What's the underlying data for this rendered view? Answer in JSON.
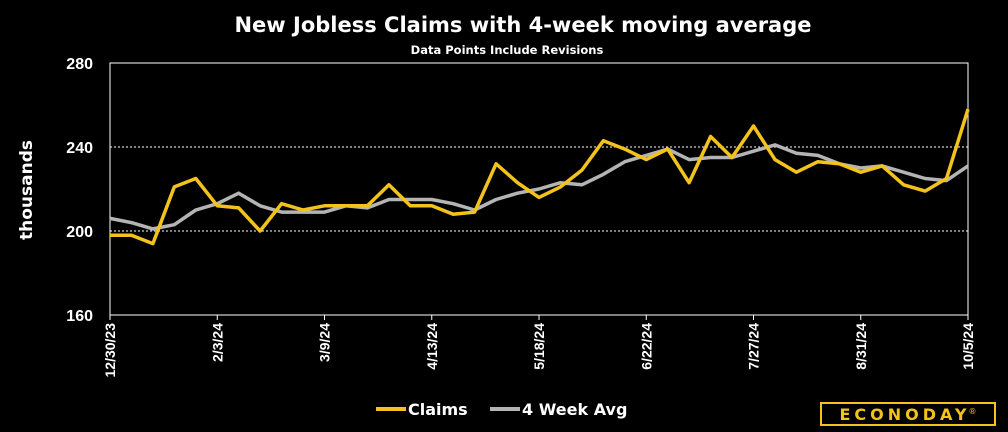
{
  "chart_data": {
    "type": "line",
    "title": "New Jobless Claims with 4-week moving average",
    "subtitle": "Data Points Include Revisions",
    "ylabel": "thousands",
    "xlabel": "",
    "ylim": [
      160,
      280
    ],
    "yticks": [
      160,
      200,
      240,
      280
    ],
    "gridlines_at": [
      200,
      240
    ],
    "grid": true,
    "legend_position": "bottom",
    "x_tick_labels": [
      {
        "index": 0,
        "label": "12/30/23"
      },
      {
        "index": 5,
        "label": "2/3/24"
      },
      {
        "index": 10,
        "label": "3/9/24"
      },
      {
        "index": 15,
        "label": "4/13/24"
      },
      {
        "index": 20,
        "label": "5/18/24"
      },
      {
        "index": 25,
        "label": "6/22/24"
      },
      {
        "index": 30,
        "label": "7/27/24"
      },
      {
        "index": 35,
        "label": "8/31/24"
      },
      {
        "index": 40,
        "label": "10/5/24"
      }
    ],
    "series": [
      {
        "name": "Claims",
        "color": "#f3c21b",
        "values": [
          198,
          198,
          194,
          221,
          225,
          212,
          211,
          200,
          213,
          210,
          212,
          212,
          212,
          222,
          212,
          212,
          208,
          209,
          232,
          223,
          216,
          221,
          229,
          243,
          239,
          234,
          239,
          223,
          245,
          235,
          250,
          234,
          228,
          233,
          232,
          228,
          231,
          222,
          219,
          225,
          258
        ]
      },
      {
        "name": "4 Week Avg",
        "color": "#b4b4b4",
        "values": [
          206,
          204,
          201,
          203,
          210,
          213,
          218,
          212,
          209,
          209,
          209,
          212,
          211,
          215,
          215,
          215,
          213,
          210,
          215,
          218,
          220,
          223,
          222,
          227,
          233,
          236,
          239,
          234,
          235,
          235,
          238,
          241,
          237,
          236,
          232,
          230,
          231,
          228,
          225,
          224,
          231
        ]
      }
    ]
  },
  "legend": {
    "items": [
      {
        "label": "Claims",
        "color": "#f3c21b"
      },
      {
        "label": "4 Week Avg",
        "color": "#b4b4b4"
      }
    ]
  },
  "brand": {
    "logo_text": "ECONODAY",
    "registered_mark": "®",
    "color": "#f3c21b"
  }
}
